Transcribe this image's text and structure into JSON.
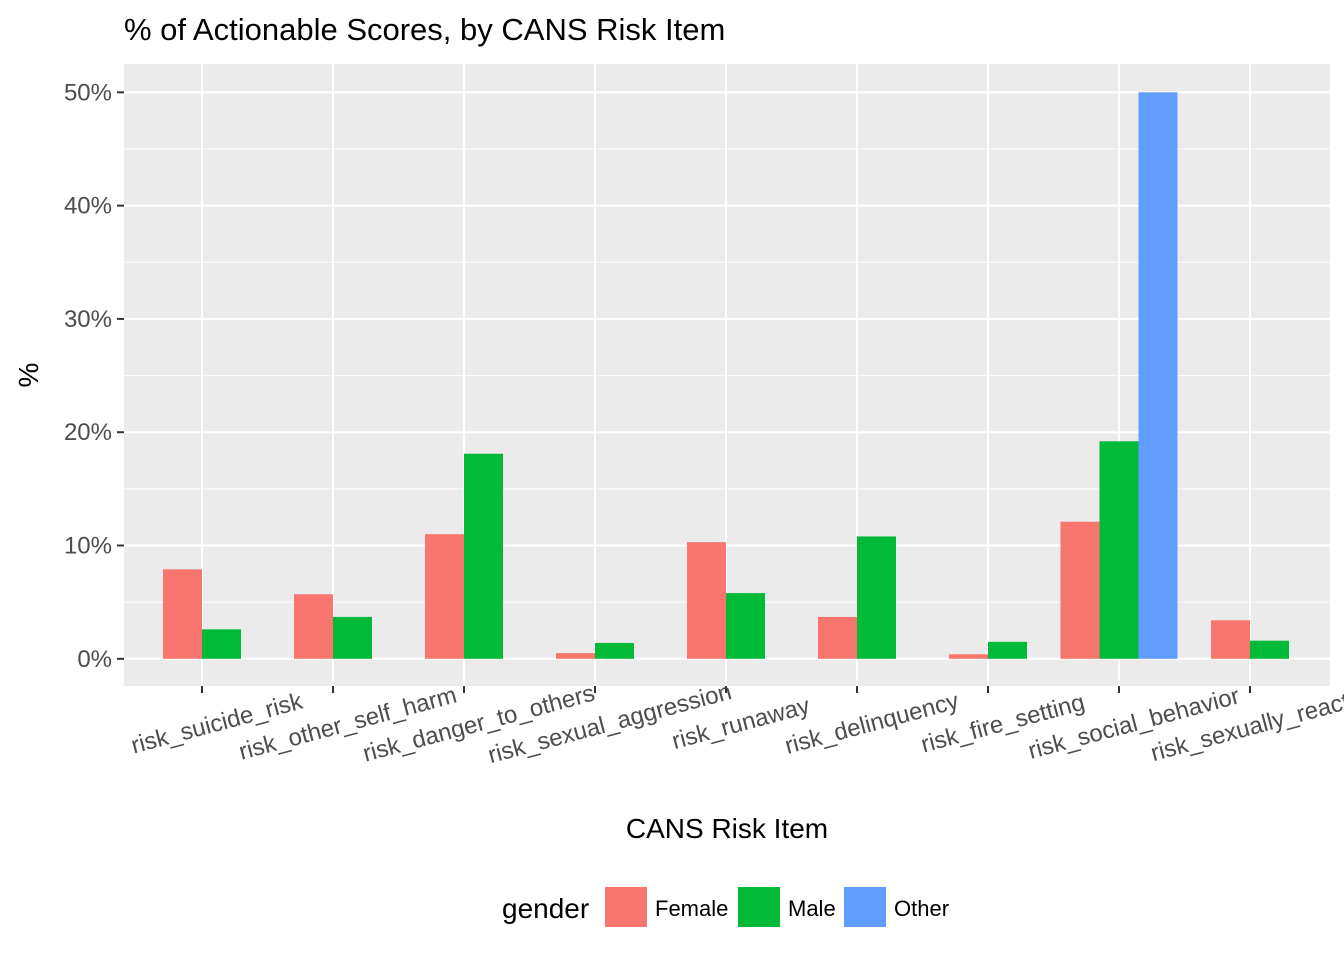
{
  "chart_data": {
    "type": "bar",
    "title": "% of Actionable Scores, by CANS Risk Item",
    "xlabel": "CANS Risk Item",
    "ylabel": "%",
    "ylim": [
      -0.024,
      0.525
    ],
    "yticks": [
      0,
      0.1,
      0.2,
      0.3,
      0.4,
      0.5
    ],
    "ytick_labels": [
      "0%",
      "10%",
      "20%",
      "30%",
      "40%",
      "50%"
    ],
    "categories": [
      "risk_suicide_risk",
      "risk_other_self_harm",
      "risk_danger_to_others",
      "risk_sexual_aggression",
      "risk_runaway",
      "risk_delinquency",
      "risk_fire_setting",
      "risk_social_behavior",
      "risk_sexually_reactive"
    ],
    "series": [
      {
        "name": "Female",
        "color": "#F8766D",
        "values": [
          0.079,
          0.057,
          0.11,
          0.005,
          0.103,
          0.037,
          0.004,
          0.121,
          0.034
        ]
      },
      {
        "name": "Male",
        "color": "#00BA38",
        "values": [
          0.026,
          0.037,
          0.181,
          0.014,
          0.058,
          0.108,
          0.015,
          0.192,
          0.016
        ]
      },
      {
        "name": "Other",
        "color": "#619CFF",
        "values": [
          null,
          null,
          null,
          null,
          null,
          null,
          null,
          0.5,
          null
        ]
      }
    ],
    "grid": true,
    "legend": {
      "title": "gender",
      "position": "bottom"
    },
    "panel_color": "#EBEBEB",
    "gridline_color": "#FFFFFF"
  }
}
